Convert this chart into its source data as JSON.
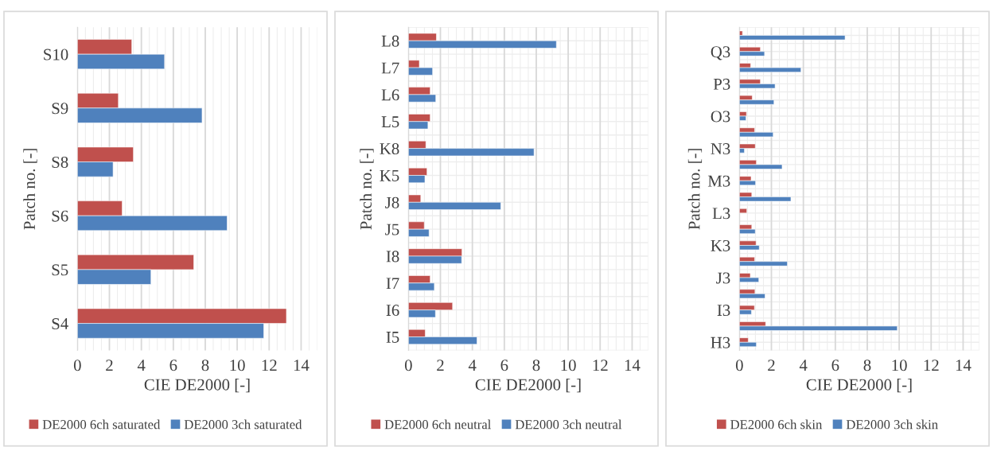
{
  "chart_data": [
    {
      "type": "bar",
      "orientation": "horizontal",
      "xlabel": "CIE DE2000 [-]",
      "ylabel": "Patch no. [-]",
      "categories": [
        "S10",
        "S9",
        "S8",
        "S6",
        "S5",
        "S4"
      ],
      "series": [
        {
          "name": "DE2000 6ch saturated",
          "color": "#c0504d",
          "values": [
            3.4,
            2.56,
            3.5,
            2.8,
            7.28,
            13.08
          ]
        },
        {
          "name": "DE2000 3ch saturated",
          "color": "#4f81bd",
          "values": [
            5.45,
            7.8,
            2.23,
            9.37,
            4.6,
            11.66
          ]
        }
      ],
      "xlim": [
        0,
        15
      ],
      "xticks": [
        0,
        2,
        4,
        6,
        8,
        10,
        12,
        14
      ],
      "grid": "x",
      "legend": "bottom"
    },
    {
      "type": "bar",
      "orientation": "horizontal",
      "xlabel": "CIE DE2000 [-]",
      "ylabel": "Patch no. [-]",
      "categories": [
        "L8",
        "L7",
        "L6",
        "L5",
        "K8",
        "K5",
        "J8",
        "J5",
        "I8",
        "I7",
        "I6",
        "I5"
      ],
      "series": [
        {
          "name": "DE2000 6ch neutral",
          "color": "#c0504d",
          "values": [
            1.75,
            0.68,
            1.36,
            1.36,
            1.09,
            1.16,
            0.77,
            0.99,
            3.35,
            1.36,
            2.76,
            1.05
          ]
        },
        {
          "name": "DE2000 3ch neutral",
          "color": "#4f81bd",
          "values": [
            9.26,
            1.51,
            1.71,
            1.22,
            7.86,
            1.03,
            5.78,
            1.29,
            3.33,
            1.62,
            1.69,
            4.29
          ]
        }
      ],
      "xlim": [
        0,
        15
      ],
      "xticks": [
        0,
        2,
        4,
        6,
        8,
        10,
        12,
        14
      ],
      "grid": true,
      "legend": "bottom"
    },
    {
      "type": "bar",
      "orientation": "horizontal",
      "xlabel": "CIE DE2000 [-]",
      "ylabel": "Patch no. [-]",
      "categories": [
        null,
        "Q3",
        null,
        "P3",
        null,
        "O3",
        null,
        "N3",
        null,
        "M3",
        null,
        "L3",
        null,
        "K3",
        null,
        "J3",
        null,
        "I3",
        null,
        "H3"
      ],
      "series": [
        {
          "name": "DE2000 6ch skin",
          "color": "#c0504d",
          "values": [
            0.19,
            1.31,
            0.7,
            1.31,
            0.8,
            0.44,
            0.95,
            0.99,
            1.06,
            0.73,
            0.77,
            0.46,
            0.77,
            1.04,
            0.95,
            0.68,
            0.97,
            0.94,
            1.64,
            0.55
          ]
        },
        {
          "name": "DE2000 3ch skin",
          "color": "#4f81bd",
          "values": [
            6.61,
            1.57,
            3.85,
            2.23,
            2.16,
            0.41,
            2.11,
            0.31,
            2.67,
            1.01,
            3.22,
            null,
            0.99,
            1.24,
            3.0,
            1.21,
            1.6,
            0.75,
            9.88,
            1.06
          ]
        }
      ],
      "xlim": [
        0,
        15
      ],
      "xticks": [
        0,
        2,
        4,
        6,
        8,
        10,
        12,
        14
      ],
      "grid": true,
      "legend": "bottom"
    }
  ]
}
